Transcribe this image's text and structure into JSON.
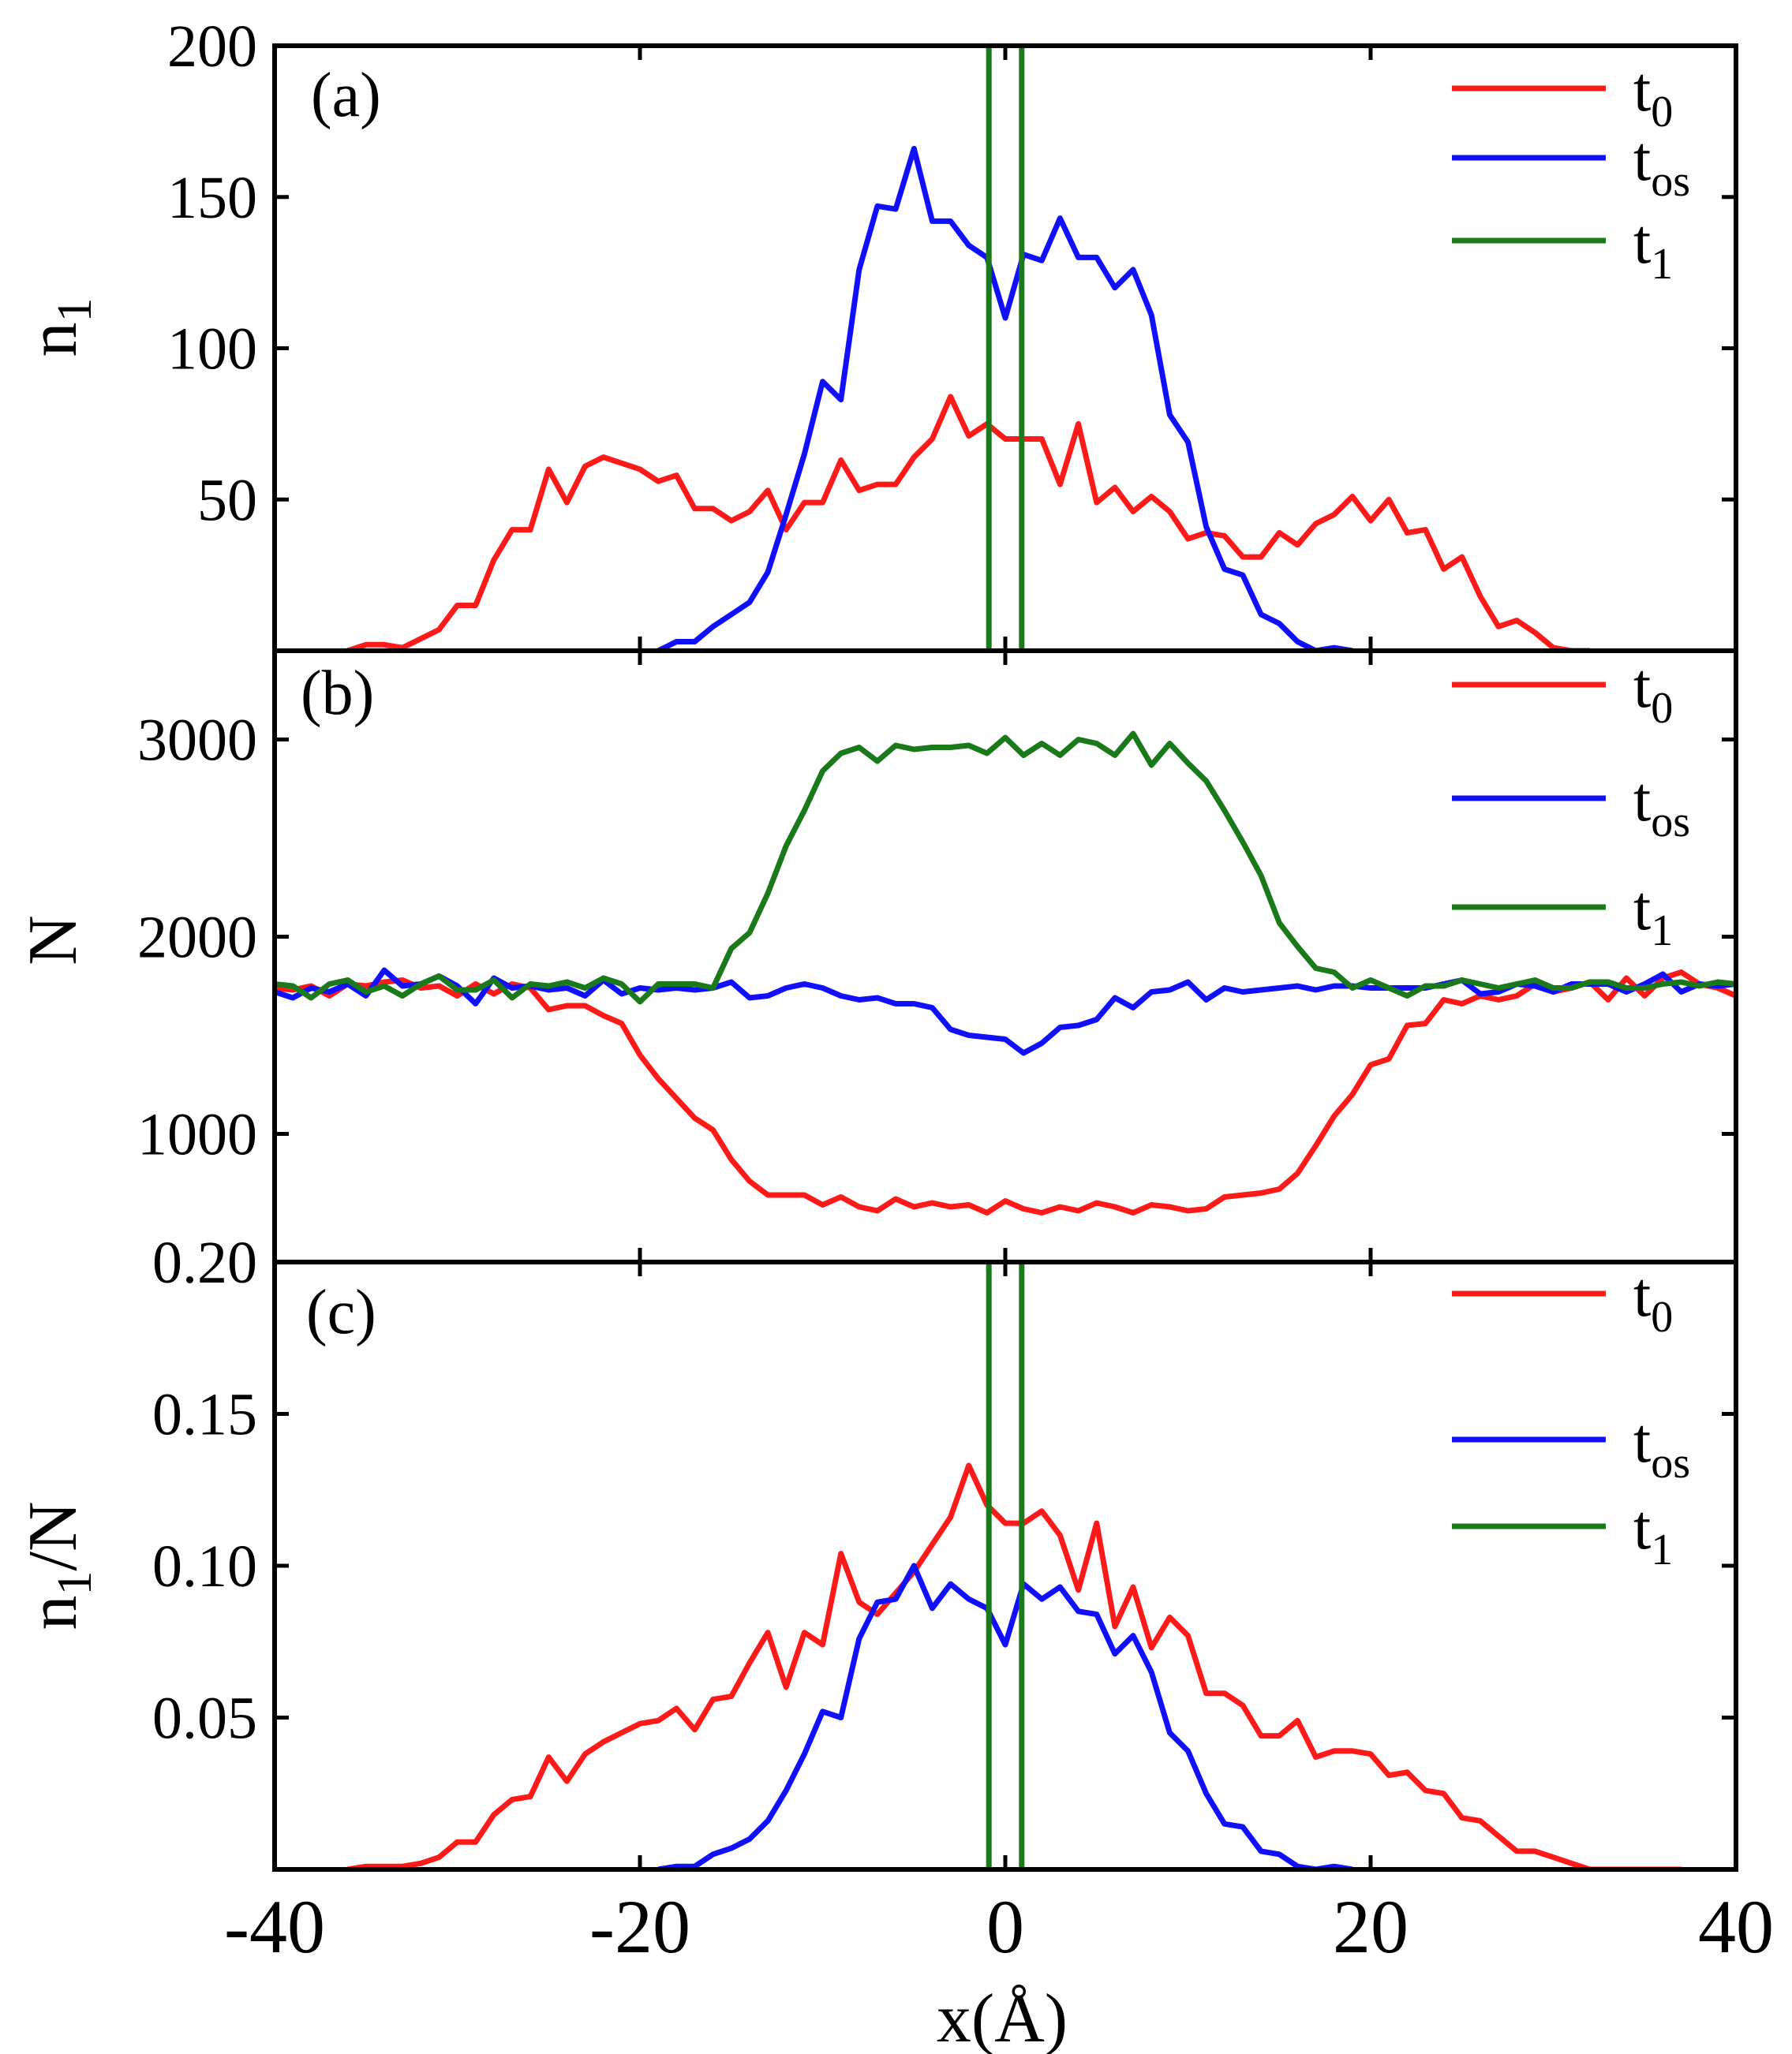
{
  "colors": {
    "t0": "#ff1a1a",
    "tos": "#1010ff",
    "t1": "#1a7a1a",
    "axis": "#000000"
  },
  "xlabel": "x(Å)",
  "x_ticks": [
    "-40",
    "-20",
    "0",
    "20",
    "40"
  ],
  "legend": [
    {
      "key": "t0",
      "main": "t",
      "sub": "0"
    },
    {
      "key": "tos",
      "main": "t",
      "sub": "os"
    },
    {
      "key": "t1",
      "main": "t",
      "sub": "1"
    }
  ],
  "chart_data": [
    {
      "type": "line",
      "panel": "(a)",
      "ylabel_main": "n",
      "ylabel_sub": "1",
      "ylabel_rest": "",
      "xlim": [
        -40,
        40
      ],
      "ylim": [
        0,
        200
      ],
      "y_ticks": [
        50,
        100,
        150,
        200
      ],
      "y_tick_labels": [
        "50",
        "100",
        "150",
        "200"
      ],
      "series": [
        {
          "name": "t0",
          "x": [
            -36,
            -35,
            -34,
            -33,
            -32,
            -31,
            -30,
            -29,
            -28,
            -27,
            -26,
            -25,
            -24,
            -23,
            -22,
            -21,
            -20,
            -19,
            -18,
            -17,
            -16,
            -15,
            -14,
            -13,
            -12,
            -11,
            -10,
            -9,
            -8,
            -7,
            -6,
            -5,
            -4,
            -3,
            -2,
            -1,
            0,
            1,
            2,
            3,
            4,
            5,
            6,
            7,
            8,
            9,
            10,
            11,
            12,
            13,
            14,
            15,
            16,
            17,
            18,
            19,
            20,
            21,
            22,
            23,
            24,
            25,
            26,
            27,
            28,
            29,
            30,
            31,
            32
          ],
          "y": [
            0,
            2,
            2,
            1,
            4,
            7,
            15,
            15,
            30,
            40,
            40,
            60,
            49,
            61,
            64,
            62,
            60,
            56,
            58,
            47,
            47,
            43,
            46,
            53,
            40,
            49,
            49,
            63,
            53,
            55,
            55,
            64,
            70,
            84,
            71,
            75,
            70,
            70,
            70,
            55,
            75,
            49,
            54,
            46,
            51,
            46,
            37,
            39,
            38,
            31,
            31,
            39,
            35,
            42,
            45,
            51,
            43,
            50,
            39,
            40,
            27,
            31,
            18,
            8,
            10,
            6,
            1,
            0,
            0
          ]
        },
        {
          "name": "tos",
          "x": [
            -19,
            -18,
            -17,
            -16,
            -15,
            -14,
            -13,
            -12,
            -11,
            -10,
            -9,
            -8,
            -7,
            -6,
            -5,
            -4,
            -3,
            -2,
            -1,
            0,
            1,
            2,
            3,
            4,
            5,
            6,
            7,
            8,
            9,
            10,
            11,
            12,
            13,
            14,
            15,
            16,
            17,
            18,
            19
          ],
          "y": [
            0,
            3,
            3,
            8,
            12,
            16,
            26,
            45,
            65,
            89,
            83,
            126,
            147,
            146,
            166,
            142,
            142,
            134,
            130,
            110,
            131,
            129,
            143,
            130,
            130,
            120,
            126,
            111,
            78,
            69,
            41,
            27,
            25,
            12,
            9,
            3,
            0,
            1,
            0
          ]
        },
        {
          "name": "t1",
          "x": [
            -0.9,
            -0.9,
            0.9,
            0.9
          ],
          "y": [
            0,
            210,
            210,
            0
          ]
        }
      ]
    },
    {
      "type": "line",
      "panel": "(b)",
      "ylabel_main": "N",
      "ylabel_sub": "",
      "ylabel_rest": "",
      "xlim": [
        -40,
        40
      ],
      "ylim": [
        350,
        3450
      ],
      "y_ticks": [
        1000,
        2000,
        3000
      ],
      "y_tick_labels": [
        "1000",
        "2000",
        "3000"
      ],
      "series": [
        {
          "name": "t0",
          "x": [
            -40,
            -39,
            -38,
            -37,
            -36,
            -35,
            -34,
            -33,
            -32,
            -31,
            -30,
            -29,
            -28,
            -27,
            -26,
            -25,
            -24,
            -23,
            -22,
            -21,
            -20,
            -19,
            -18,
            -17,
            -16,
            -15,
            -14,
            -13,
            -12,
            -11,
            -10,
            -9,
            -8,
            -7,
            -6,
            -5,
            -4,
            -3,
            -2,
            -1,
            0,
            1,
            2,
            3,
            4,
            5,
            6,
            7,
            8,
            9,
            10,
            11,
            12,
            13,
            14,
            15,
            16,
            17,
            18,
            19,
            20,
            21,
            22,
            23,
            24,
            25,
            26,
            27,
            28,
            29,
            30,
            31,
            32,
            33,
            34,
            35,
            36,
            37,
            38,
            39,
            40
          ],
          "y": [
            1740,
            1730,
            1750,
            1700,
            1760,
            1750,
            1770,
            1780,
            1740,
            1750,
            1700,
            1760,
            1710,
            1760,
            1740,
            1630,
            1650,
            1650,
            1600,
            1560,
            1400,
            1280,
            1180,
            1080,
            1020,
            870,
            760,
            690,
            690,
            690,
            640,
            680,
            630,
            610,
            670,
            630,
            650,
            630,
            640,
            600,
            660,
            620,
            600,
            630,
            610,
            650,
            630,
            600,
            640,
            630,
            610,
            620,
            680,
            690,
            700,
            720,
            800,
            940,
            1090,
            1200,
            1350,
            1380,
            1550,
            1560,
            1680,
            1660,
            1700,
            1680,
            1700,
            1760,
            1720,
            1740,
            1770,
            1680,
            1790,
            1700,
            1790,
            1820,
            1760,
            1740,
            1700
          ]
        },
        {
          "name": "tos",
          "x": [
            -40,
            -39,
            -38,
            -37,
            -36,
            -35,
            -34,
            -33,
            -32,
            -31,
            -30,
            -29,
            -28,
            -27,
            -26,
            -25,
            -24,
            -23,
            -22,
            -21,
            -20,
            -19,
            -18,
            -17,
            -16,
            -15,
            -14,
            -13,
            -12,
            -11,
            -10,
            -9,
            -8,
            -7,
            -6,
            -5,
            -4,
            -3,
            -2,
            -1,
            0,
            1,
            2,
            3,
            4,
            5,
            6,
            7,
            8,
            9,
            10,
            11,
            12,
            13,
            14,
            15,
            16,
            17,
            18,
            19,
            20,
            21,
            22,
            23,
            24,
            25,
            26,
            27,
            28,
            29,
            30,
            31,
            32,
            33,
            34,
            35,
            36,
            37,
            38,
            39,
            40
          ],
          "y": [
            1720,
            1690,
            1740,
            1720,
            1760,
            1700,
            1830,
            1750,
            1760,
            1800,
            1750,
            1660,
            1790,
            1740,
            1750,
            1730,
            1740,
            1700,
            1780,
            1710,
            1740,
            1730,
            1740,
            1730,
            1740,
            1770,
            1690,
            1700,
            1740,
            1760,
            1740,
            1700,
            1680,
            1690,
            1660,
            1660,
            1640,
            1530,
            1500,
            1490,
            1480,
            1410,
            1460,
            1540,
            1550,
            1580,
            1690,
            1640,
            1720,
            1730,
            1770,
            1680,
            1740,
            1720,
            1730,
            1740,
            1750,
            1730,
            1750,
            1750,
            1740,
            1740,
            1740,
            1740,
            1760,
            1780,
            1710,
            1720,
            1760,
            1750,
            1720,
            1760,
            1760,
            1760,
            1720,
            1760,
            1810,
            1720,
            1760,
            1750,
            1760
          ]
        },
        {
          "name": "t1",
          "x": [
            -40,
            -39,
            -38,
            -37,
            -36,
            -35,
            -34,
            -33,
            -32,
            -31,
            -30,
            -29,
            -28,
            -27,
            -26,
            -25,
            -24,
            -23,
            -22,
            -21,
            -20,
            -19,
            -18,
            -17,
            -16,
            -15,
            -14,
            -13,
            -12,
            -11,
            -10,
            -9,
            -8,
            -7,
            -6,
            -5,
            -4,
            -3,
            -2,
            -1,
            0,
            1,
            2,
            3,
            4,
            5,
            6,
            7,
            8,
            9,
            10,
            11,
            12,
            13,
            14,
            15,
            16,
            17,
            18,
            19,
            20,
            21,
            22,
            23,
            24,
            25,
            26,
            27,
            28,
            29,
            30,
            31,
            32,
            33,
            34,
            35,
            36,
            37,
            38,
            39,
            40
          ],
          "y": [
            1760,
            1750,
            1690,
            1760,
            1780,
            1720,
            1750,
            1700,
            1760,
            1800,
            1730,
            1730,
            1780,
            1690,
            1760,
            1750,
            1770,
            1740,
            1790,
            1760,
            1670,
            1760,
            1760,
            1760,
            1740,
            1940,
            2020,
            2220,
            2460,
            2640,
            2840,
            2930,
            2960,
            2890,
            2970,
            2950,
            2960,
            2960,
            2970,
            2930,
            3010,
            2920,
            2980,
            2920,
            3000,
            2980,
            2920,
            3030,
            2870,
            2980,
            2880,
            2790,
            2640,
            2480,
            2310,
            2070,
            1950,
            1840,
            1820,
            1740,
            1780,
            1740,
            1700,
            1750,
            1750,
            1780,
            1760,
            1740,
            1760,
            1780,
            1740,
            1740,
            1770,
            1770,
            1740,
            1740,
            1760,
            1770,
            1750,
            1770,
            1760
          ]
        }
      ]
    },
    {
      "type": "line",
      "panel": "(c)",
      "ylabel_main": "n",
      "ylabel_sub": "1",
      "ylabel_rest": "/N",
      "xlim": [
        -40,
        40
      ],
      "ylim": [
        0,
        0.2
      ],
      "y_ticks": [
        0.05,
        0.1,
        0.15,
        0.2
      ],
      "y_tick_labels": [
        "0.05",
        "0.10",
        "0.15",
        "0.20"
      ],
      "series": [
        {
          "name": "t0",
          "x": [
            -36,
            -35,
            -34,
            -33,
            -32,
            -31,
            -30,
            -29,
            -28,
            -27,
            -26,
            -25,
            -24,
            -23,
            -22,
            -21,
            -20,
            -19,
            -18,
            -17,
            -16,
            -15,
            -14,
            -13,
            -12,
            -11,
            -10,
            -9,
            -8,
            -7,
            -6,
            -5,
            -4,
            -3,
            -2,
            -1,
            0,
            1,
            2,
            3,
            4,
            5,
            6,
            7,
            8,
            9,
            10,
            11,
            12,
            13,
            14,
            15,
            16,
            17,
            18,
            19,
            20,
            21,
            22,
            23,
            24,
            25,
            26,
            27,
            28,
            29,
            30,
            31,
            32,
            33,
            34,
            35,
            36,
            37
          ],
          "y": [
            0,
            0.001,
            0.001,
            0.001,
            0.002,
            0.004,
            0.009,
            0.009,
            0.018,
            0.023,
            0.024,
            0.037,
            0.029,
            0.038,
            0.042,
            0.045,
            0.048,
            0.049,
            0.053,
            0.046,
            0.056,
            0.057,
            0.068,
            0.078,
            0.06,
            0.078,
            0.074,
            0.104,
            0.088,
            0.084,
            0.091,
            0.098,
            0.107,
            0.116,
            0.133,
            0.12,
            0.114,
            0.114,
            0.118,
            0.11,
            0.092,
            0.114,
            0.08,
            0.093,
            0.073,
            0.083,
            0.077,
            0.058,
            0.058,
            0.054,
            0.044,
            0.044,
            0.049,
            0.037,
            0.039,
            0.039,
            0.038,
            0.031,
            0.032,
            0.026,
            0.025,
            0.017,
            0.016,
            0.011,
            0.006,
            0.006,
            0.004,
            0.002,
            0,
            0,
            0,
            0,
            0,
            0
          ]
        },
        {
          "name": "tos",
          "x": [
            -19,
            -18,
            -17,
            -16,
            -15,
            -14,
            -13,
            -12,
            -11,
            -10,
            -9,
            -8,
            -7,
            -6,
            -5,
            -4,
            -3,
            -2,
            -1,
            0,
            1,
            2,
            3,
            4,
            5,
            6,
            7,
            8,
            9,
            10,
            11,
            12,
            13,
            14,
            15,
            16,
            17,
            18,
            19
          ],
          "y": [
            0,
            0.001,
            0.001,
            0.005,
            0.007,
            0.01,
            0.016,
            0.026,
            0.038,
            0.052,
            0.05,
            0.076,
            0.088,
            0.089,
            0.1,
            0.086,
            0.094,
            0.089,
            0.086,
            0.074,
            0.094,
            0.089,
            0.093,
            0.085,
            0.084,
            0.071,
            0.077,
            0.065,
            0.045,
            0.039,
            0.025,
            0.015,
            0.014,
            0.006,
            0.005,
            0.001,
            0,
            0.001,
            0
          ]
        },
        {
          "name": "t1",
          "x": [
            -0.9,
            -0.9,
            0.9,
            0.9
          ],
          "y": [
            0,
            0.21,
            0.21,
            0
          ]
        }
      ]
    }
  ]
}
